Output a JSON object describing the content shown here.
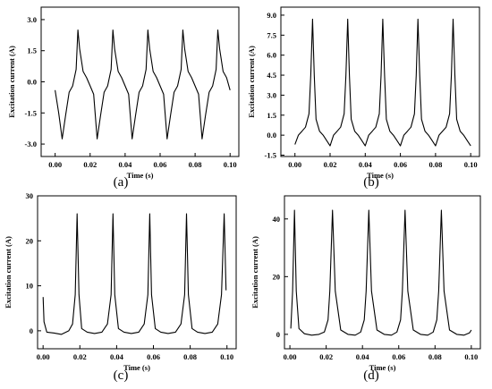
{
  "chart_data": [
    {
      "panel": "(a)",
      "type": "line",
      "xlabel": "Time (s)",
      "ylabel": "Excitation current (A)",
      "xlim": [
        -0.008,
        0.105
      ],
      "ylim": [
        -3.6,
        3.6
      ],
      "xticks": [
        0.0,
        0.02,
        0.04,
        0.06,
        0.08,
        0.1
      ],
      "yticks": [
        -3.0,
        -1.5,
        0.0,
        1.5,
        3.0
      ],
      "xtick_labels": [
        "0.00",
        "0.02",
        "0.04",
        "0.06",
        "0.08",
        "0.10"
      ],
      "ytick_labels": [
        "-3.0",
        "-1.5",
        "0.0",
        "1.5",
        "3.0"
      ],
      "series": [
        {
          "x": [
            0.0,
            0.002,
            0.004,
            0.006,
            0.008,
            0.01,
            0.012,
            0.013,
            0.014,
            0.016,
            0.018,
            0.02,
            0.022,
            0.024,
            0.026,
            0.028,
            0.03,
            0.032,
            0.033,
            0.034,
            0.036,
            0.038,
            0.04,
            0.042,
            0.044,
            0.046,
            0.048,
            0.05,
            0.052,
            0.053,
            0.054,
            0.056,
            0.058,
            0.06,
            0.062,
            0.064,
            0.066,
            0.068,
            0.07,
            0.072,
            0.073,
            0.074,
            0.076,
            0.078,
            0.08,
            0.082,
            0.084,
            0.086,
            0.088,
            0.09,
            0.092,
            0.093,
            0.094,
            0.096,
            0.098,
            0.1
          ],
          "y": [
            -0.4,
            -1.5,
            -2.75,
            -1.6,
            -0.5,
            -0.2,
            0.6,
            2.5,
            1.6,
            0.5,
            0.2,
            -0.2,
            -0.6,
            -2.75,
            -1.6,
            -0.5,
            -0.2,
            0.6,
            2.5,
            1.6,
            0.5,
            0.2,
            -0.2,
            -0.6,
            -2.75,
            -1.6,
            -0.5,
            -0.2,
            0.6,
            2.5,
            1.6,
            0.5,
            0.2,
            -0.2,
            -0.6,
            -2.75,
            -1.6,
            -0.5,
            -0.2,
            0.6,
            2.5,
            1.6,
            0.5,
            0.2,
            -0.2,
            -0.6,
            -2.75,
            -1.6,
            -0.5,
            -0.2,
            0.6,
            2.5,
            1.6,
            0.5,
            0.2,
            -0.4
          ]
        }
      ]
    },
    {
      "panel": "(b)",
      "type": "line",
      "xlabel": "Time (s)",
      "ylabel": "Excitation current (A)",
      "xlim": [
        -0.008,
        0.105
      ],
      "ylim": [
        -1.6,
        9.6
      ],
      "xticks": [
        0.0,
        0.02,
        0.04,
        0.06,
        0.08,
        0.1
      ],
      "yticks": [
        -1.5,
        0.0,
        1.5,
        3.0,
        4.5,
        6.0,
        7.5,
        9.0
      ],
      "xtick_labels": [
        "0.00",
        "0.02",
        "0.04",
        "0.06",
        "0.08",
        "0.10"
      ],
      "ytick_labels": [
        "-1.5",
        "0.0",
        "1.5",
        "3.0",
        "4.5",
        "6.0",
        "7.5",
        "9.0"
      ],
      "series": [
        {
          "x": [
            0.0,
            0.002,
            0.004,
            0.006,
            0.008,
            0.009,
            0.01,
            0.011,
            0.012,
            0.014,
            0.016,
            0.018,
            0.02,
            0.022,
            0.024,
            0.026,
            0.028,
            0.029,
            0.03,
            0.031,
            0.032,
            0.034,
            0.036,
            0.038,
            0.04,
            0.042,
            0.044,
            0.046,
            0.048,
            0.049,
            0.05,
            0.051,
            0.052,
            0.054,
            0.056,
            0.058,
            0.06,
            0.062,
            0.064,
            0.066,
            0.068,
            0.069,
            0.07,
            0.071,
            0.072,
            0.074,
            0.076,
            0.078,
            0.08,
            0.082,
            0.084,
            0.086,
            0.088,
            0.089,
            0.09,
            0.091,
            0.092,
            0.094,
            0.096,
            0.098,
            0.1
          ],
          "y": [
            -0.7,
            0.0,
            0.3,
            0.6,
            1.6,
            4.5,
            8.7,
            4.5,
            1.2,
            0.3,
            0.0,
            -0.4,
            -0.8,
            0.0,
            0.3,
            0.6,
            1.6,
            4.5,
            8.7,
            4.5,
            1.2,
            0.3,
            0.0,
            -0.4,
            -0.8,
            0.0,
            0.3,
            0.6,
            1.6,
            4.5,
            8.7,
            4.5,
            1.2,
            0.3,
            0.0,
            -0.4,
            -0.8,
            0.0,
            0.3,
            0.6,
            1.6,
            4.5,
            8.7,
            4.5,
            1.2,
            0.3,
            0.0,
            -0.4,
            -0.8,
            0.0,
            0.3,
            0.6,
            1.6,
            4.5,
            8.7,
            4.5,
            1.2,
            0.3,
            0.0,
            -0.4,
            -0.8
          ]
        }
      ]
    },
    {
      "panel": "(c)",
      "type": "line",
      "xlabel": "Time (s)",
      "ylabel": "Excitation current (A)",
      "xlim": [
        -0.003,
        0.105
      ],
      "ylim": [
        -4.0,
        30.0
      ],
      "xticks": [
        0.0,
        0.02,
        0.04,
        0.06,
        0.08,
        0.1
      ],
      "yticks": [
        0,
        10,
        20,
        30
      ],
      "xtick_labels": [
        "0.00",
        "0.02",
        "0.04",
        "0.06",
        "0.08",
        "0.10"
      ],
      "ytick_labels": [
        "0",
        "10",
        "20",
        "30"
      ],
      "series": [
        {
          "x": [
            0.0,
            0.0005,
            0.002,
            0.006,
            0.01,
            0.014,
            0.016,
            0.0175,
            0.0185,
            0.0195,
            0.021,
            0.024,
            0.028,
            0.032,
            0.035,
            0.037,
            0.038,
            0.039,
            0.041,
            0.044,
            0.048,
            0.052,
            0.055,
            0.057,
            0.058,
            0.059,
            0.061,
            0.064,
            0.068,
            0.072,
            0.075,
            0.077,
            0.078,
            0.079,
            0.081,
            0.084,
            0.088,
            0.092,
            0.095,
            0.097,
            0.0985,
            0.0995
          ],
          "y": [
            7.5,
            2.0,
            -0.3,
            -0.5,
            -0.8,
            0.0,
            1.5,
            8.0,
            26.0,
            8.0,
            0.5,
            -0.3,
            -0.6,
            -0.3,
            1.5,
            8.0,
            26.0,
            8.0,
            0.5,
            -0.3,
            -0.6,
            -0.3,
            1.5,
            8.0,
            26.0,
            8.0,
            0.5,
            -0.3,
            -0.6,
            -0.3,
            1.5,
            8.0,
            26.0,
            8.0,
            0.5,
            -0.3,
            -0.6,
            -0.3,
            1.5,
            8.0,
            26.0,
            9.0
          ]
        }
      ]
    },
    {
      "panel": "(d)",
      "type": "line",
      "xlabel": "Time (s)",
      "ylabel": "Excitation current (A)",
      "xlim": [
        -0.003,
        0.105
      ],
      "ylim": [
        -5.0,
        48.0
      ],
      "xticks": [
        0.0,
        0.02,
        0.04,
        0.06,
        0.08,
        0.1
      ],
      "yticks": [
        0,
        20,
        40
      ],
      "xtick_labels": [
        "0.00",
        "0.02",
        "0.04",
        "0.06",
        "0.08",
        "0.10"
      ],
      "ytick_labels": [
        "0",
        "20",
        "40"
      ],
      "series": [
        {
          "x": [
            0.0005,
            0.0015,
            0.0025,
            0.0035,
            0.005,
            0.008,
            0.012,
            0.016,
            0.019,
            0.021,
            0.022,
            0.0235,
            0.025,
            0.028,
            0.032,
            0.036,
            0.039,
            0.041,
            0.042,
            0.0435,
            0.045,
            0.048,
            0.052,
            0.056,
            0.059,
            0.061,
            0.062,
            0.0635,
            0.065,
            0.068,
            0.072,
            0.076,
            0.079,
            0.081,
            0.082,
            0.0835,
            0.085,
            0.088,
            0.092,
            0.096,
            0.099,
            0.1
          ],
          "y": [
            2.0,
            15.0,
            43.0,
            15.0,
            2.0,
            0.2,
            -0.3,
            0.0,
            0.8,
            5.0,
            15.0,
            43.0,
            15.0,
            1.5,
            0.0,
            -0.3,
            0.8,
            5.0,
            15.0,
            43.0,
            15.0,
            1.5,
            0.0,
            -0.3,
            0.8,
            5.0,
            15.0,
            43.0,
            15.0,
            1.5,
            0.0,
            -0.3,
            0.8,
            5.0,
            15.0,
            43.0,
            15.0,
            1.5,
            0.0,
            -0.3,
            0.5,
            1.5
          ]
        }
      ]
    }
  ]
}
